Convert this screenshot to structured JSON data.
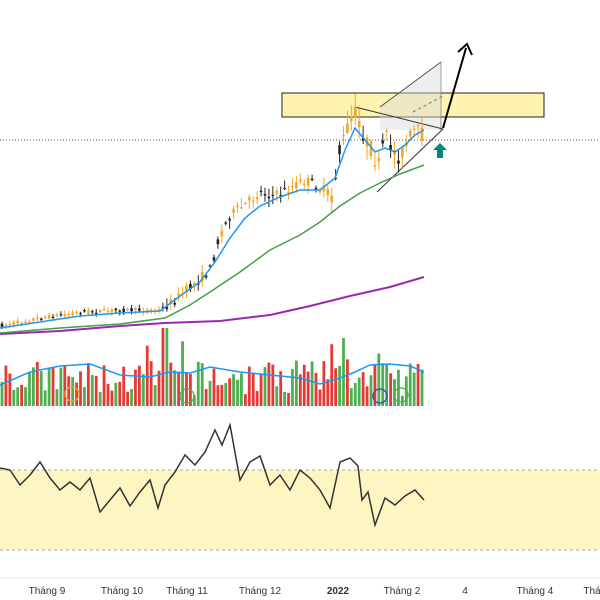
{
  "chart_data": {
    "type": "candlestick",
    "price_panel": {
      "chart_type": "candlestick",
      "overlays": [
        "fast moving average",
        "medium moving average",
        "slow moving average"
      ],
      "colors": {
        "up": "#f5a623",
        "down": "#222222",
        "ma_fast": "#2196f3",
        "ma_medium": "#43a047",
        "ma_slow": "#9c27b0",
        "resistance_zone": "#fff3b0",
        "projection_arrow": "#000000",
        "signal_arrow": "#00897b"
      },
      "annotations": [
        "resistance zone rectangle",
        "symmetrical triangle pattern",
        "breakout projection arrow",
        "up signal arrow",
        "dotted horizontal price line"
      ]
    },
    "volume_panel": {
      "chart_type": "bar",
      "colors": {
        "up": "#4caf50",
        "down": "#e53935",
        "average": "#2196f3"
      },
      "markers": [
        "circled bars"
      ]
    },
    "oscillator_panel": {
      "chart_type": "line",
      "band": "shaded neutral band",
      "colors": {
        "line": "#333333",
        "band": "#fff5c2",
        "band_edge": "#aaaaaa"
      }
    },
    "x_axis": {
      "ticks": [
        {
          "label": "Tháng 9",
          "bold": false
        },
        {
          "label": "Tháng 10",
          "bold": false
        },
        {
          "label": "Tháng 11",
          "bold": false
        },
        {
          "label": "Tháng 12",
          "bold": false
        },
        {
          "label": "2022",
          "bold": true
        },
        {
          "label": "Tháng 2",
          "bold": false
        },
        {
          "label": "4",
          "bold": false
        },
        {
          "label": "Tháng 4",
          "bold": false
        },
        {
          "label": "Thá",
          "bold": false
        }
      ]
    },
    "grid": false,
    "legend": "none"
  }
}
